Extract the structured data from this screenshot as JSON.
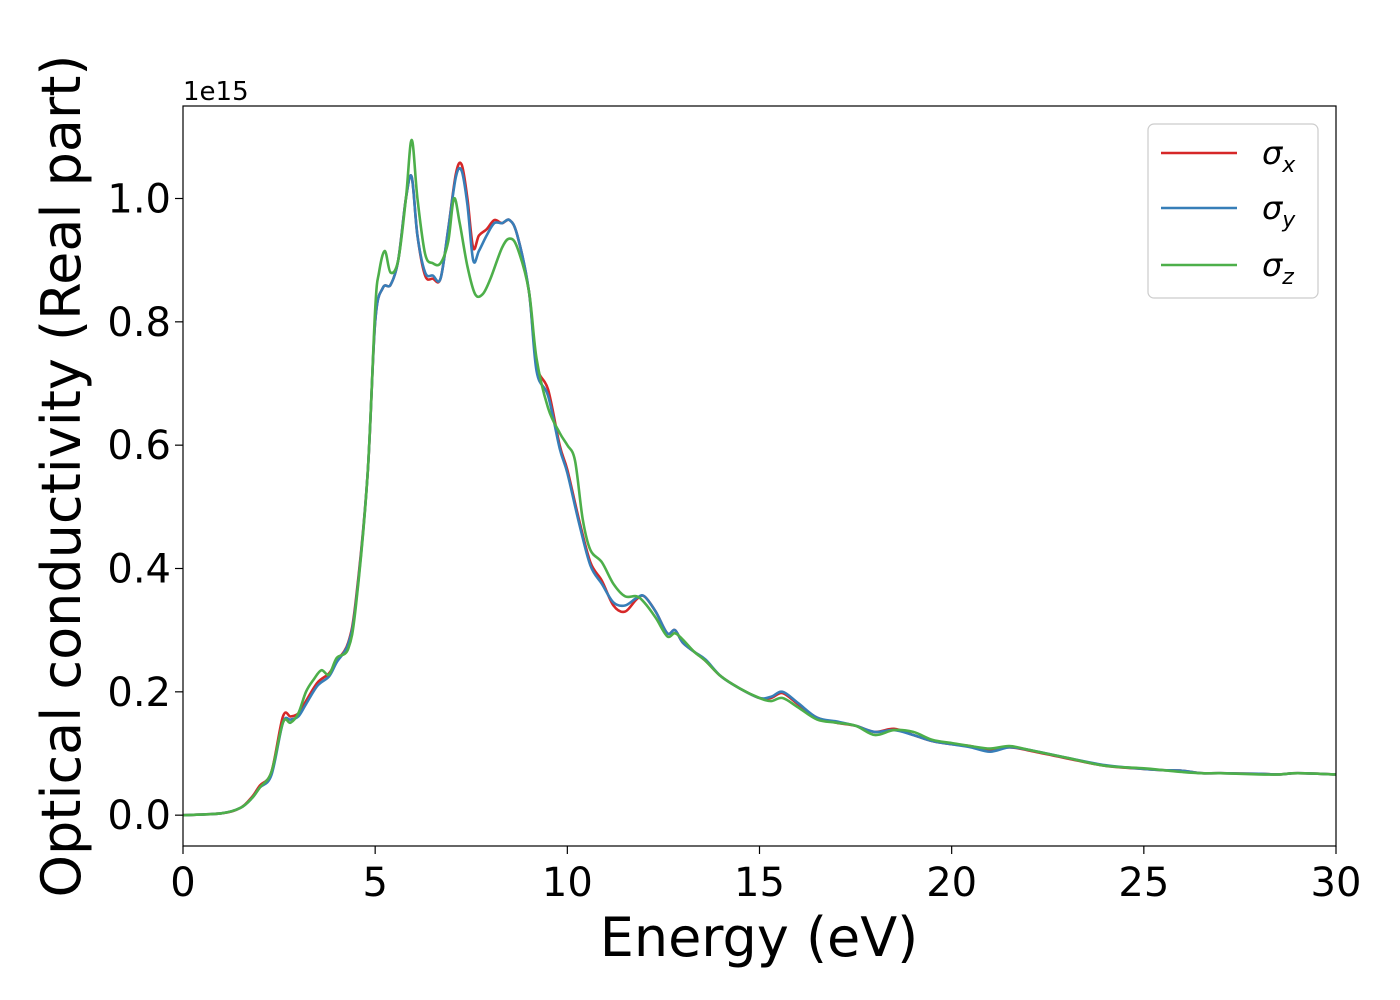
{
  "chart_data": {
    "type": "line",
    "title": "",
    "xlabel": "Energy (eV)",
    "ylabel": "Optical conductivity (Real part)",
    "y_offset_text": "1e15",
    "xlim": [
      0,
      30
    ],
    "ylim": [
      -0.05,
      1.15
    ],
    "x_ticks": [
      0,
      5,
      10,
      15,
      20,
      25,
      30
    ],
    "x_tick_labels": [
      "0",
      "5",
      "10",
      "15",
      "20",
      "25",
      "30"
    ],
    "y_ticks": [
      0.0,
      0.2,
      0.4,
      0.6,
      0.8,
      1.0
    ],
    "y_tick_labels": [
      "0.0",
      "0.2",
      "0.4",
      "0.6",
      "0.8",
      "1.0"
    ],
    "grid": false,
    "legend_position": "upper-right",
    "series": [
      {
        "name": "σx",
        "symbol": "σ",
        "subscript": "x",
        "color": "#d62728",
        "x": [
          0,
          1,
          1.5,
          1.8,
          2.0,
          2.3,
          2.6,
          2.8,
          3.0,
          3.2,
          3.5,
          3.8,
          4.0,
          4.3,
          4.5,
          4.8,
          5.0,
          5.2,
          5.4,
          5.6,
          5.8,
          5.95,
          6.1,
          6.3,
          6.5,
          6.7,
          6.9,
          7.1,
          7.25,
          7.4,
          7.55,
          7.7,
          7.9,
          8.1,
          8.3,
          8.5,
          8.7,
          9.0,
          9.2,
          9.5,
          9.8,
          10.0,
          10.3,
          10.6,
          10.9,
          11.2,
          11.5,
          11.8,
          12.0,
          12.3,
          12.6,
          12.8,
          13.0,
          13.3,
          13.6,
          14.0,
          14.5,
          15.0,
          15.3,
          15.6,
          16.0,
          16.5,
          17.0,
          17.5,
          18.0,
          18.5,
          19.0,
          19.5,
          20.0,
          20.5,
          21.0,
          21.5,
          22.0,
          23.0,
          24.0,
          25.0,
          25.5,
          26.0,
          26.5,
          27.0,
          28.0,
          28.5,
          29.0,
          30.0
        ],
        "values": [
          0.0,
          0.003,
          0.012,
          0.03,
          0.048,
          0.07,
          0.16,
          0.16,
          0.165,
          0.185,
          0.215,
          0.23,
          0.25,
          0.28,
          0.35,
          0.55,
          0.8,
          0.855,
          0.86,
          0.9,
          1.0,
          1.035,
          0.94,
          0.875,
          0.87,
          0.87,
          0.95,
          1.04,
          1.055,
          1.0,
          0.92,
          0.94,
          0.95,
          0.965,
          0.96,
          0.965,
          0.94,
          0.85,
          0.73,
          0.69,
          0.6,
          0.56,
          0.48,
          0.41,
          0.38,
          0.34,
          0.33,
          0.35,
          0.355,
          0.33,
          0.295,
          0.3,
          0.28,
          0.265,
          0.25,
          0.225,
          0.205,
          0.19,
          0.19,
          0.198,
          0.18,
          0.158,
          0.15,
          0.145,
          0.135,
          0.14,
          0.13,
          0.12,
          0.115,
          0.112,
          0.105,
          0.11,
          0.105,
          0.092,
          0.08,
          0.075,
          0.073,
          0.072,
          0.068,
          0.068,
          0.067,
          0.066,
          0.068,
          0.066
        ]
      },
      {
        "name": "σy",
        "symbol": "σ",
        "subscript": "y",
        "color": "#377eb8",
        "x": [
          0,
          1,
          1.5,
          1.8,
          2.0,
          2.3,
          2.6,
          2.8,
          3.0,
          3.2,
          3.5,
          3.8,
          4.0,
          4.3,
          4.5,
          4.8,
          5.0,
          5.2,
          5.4,
          5.6,
          5.8,
          5.95,
          6.1,
          6.3,
          6.5,
          6.7,
          6.9,
          7.1,
          7.25,
          7.4,
          7.55,
          7.7,
          7.9,
          8.1,
          8.3,
          8.5,
          8.7,
          9.0,
          9.2,
          9.5,
          9.8,
          10.0,
          10.3,
          10.6,
          10.9,
          11.2,
          11.5,
          11.8,
          12.0,
          12.3,
          12.6,
          12.8,
          13.0,
          13.3,
          13.6,
          14.0,
          14.5,
          15.0,
          15.3,
          15.6,
          16.0,
          16.5,
          17.0,
          17.5,
          18.0,
          18.5,
          19.0,
          19.5,
          20.0,
          20.5,
          21.0,
          21.5,
          22.0,
          23.0,
          24.0,
          25.0,
          25.5,
          26.0,
          26.5,
          27.0,
          28.0,
          28.5,
          29.0,
          30.0
        ],
        "values": [
          0.0,
          0.003,
          0.012,
          0.028,
          0.045,
          0.065,
          0.15,
          0.155,
          0.16,
          0.18,
          0.21,
          0.225,
          0.248,
          0.278,
          0.345,
          0.55,
          0.8,
          0.855,
          0.86,
          0.9,
          1.0,
          1.035,
          0.94,
          0.88,
          0.875,
          0.87,
          0.95,
          1.035,
          1.045,
          0.99,
          0.9,
          0.915,
          0.94,
          0.96,
          0.96,
          0.965,
          0.94,
          0.85,
          0.72,
          0.68,
          0.595,
          0.555,
          0.475,
          0.405,
          0.375,
          0.345,
          0.34,
          0.352,
          0.355,
          0.33,
          0.295,
          0.3,
          0.28,
          0.265,
          0.252,
          0.225,
          0.205,
          0.19,
          0.192,
          0.2,
          0.182,
          0.158,
          0.152,
          0.145,
          0.135,
          0.138,
          0.13,
          0.12,
          0.115,
          0.11,
          0.103,
          0.11,
          0.106,
          0.093,
          0.081,
          0.075,
          0.073,
          0.072,
          0.068,
          0.068,
          0.067,
          0.066,
          0.068,
          0.066
        ]
      },
      {
        "name": "σz",
        "symbol": "σ",
        "subscript": "z",
        "color": "#4daf4a",
        "x": [
          0,
          1,
          1.5,
          1.8,
          2.0,
          2.3,
          2.6,
          2.8,
          3.0,
          3.2,
          3.4,
          3.6,
          3.8,
          4.0,
          4.3,
          4.5,
          4.8,
          5.0,
          5.1,
          5.25,
          5.4,
          5.6,
          5.8,
          5.95,
          6.1,
          6.3,
          6.5,
          6.7,
          6.9,
          7.05,
          7.2,
          7.4,
          7.6,
          7.8,
          8.0,
          8.3,
          8.5,
          8.7,
          9.0,
          9.2,
          9.5,
          9.8,
          10.0,
          10.2,
          10.4,
          10.6,
          10.9,
          11.2,
          11.5,
          11.8,
          12.0,
          12.3,
          12.6,
          12.8,
          13.0,
          13.3,
          13.6,
          14.0,
          14.5,
          15.0,
          15.3,
          15.6,
          16.0,
          16.5,
          17.0,
          17.5,
          18.0,
          18.5,
          19.0,
          19.5,
          20.0,
          20.5,
          21.0,
          21.5,
          22.0,
          23.0,
          24.0,
          25.0,
          25.5,
          26.0,
          26.5,
          27.0,
          28.0,
          28.5,
          29.0,
          30.0
        ],
        "values": [
          0.0,
          0.003,
          0.012,
          0.028,
          0.045,
          0.07,
          0.15,
          0.15,
          0.165,
          0.2,
          0.22,
          0.235,
          0.228,
          0.255,
          0.27,
          0.34,
          0.55,
          0.82,
          0.88,
          0.915,
          0.88,
          0.9,
          1.0,
          1.095,
          1.0,
          0.91,
          0.895,
          0.895,
          0.93,
          1.0,
          0.96,
          0.89,
          0.845,
          0.845,
          0.87,
          0.92,
          0.935,
          0.92,
          0.85,
          0.74,
          0.66,
          0.62,
          0.6,
          0.575,
          0.48,
          0.43,
          0.41,
          0.375,
          0.355,
          0.355,
          0.345,
          0.32,
          0.29,
          0.295,
          0.285,
          0.265,
          0.25,
          0.225,
          0.205,
          0.19,
          0.185,
          0.19,
          0.175,
          0.155,
          0.15,
          0.145,
          0.13,
          0.138,
          0.135,
          0.122,
          0.117,
          0.112,
          0.108,
          0.112,
          0.106,
          0.093,
          0.08,
          0.076,
          0.073,
          0.07,
          0.068,
          0.068,
          0.066,
          0.066,
          0.068,
          0.066
        ]
      }
    ]
  }
}
